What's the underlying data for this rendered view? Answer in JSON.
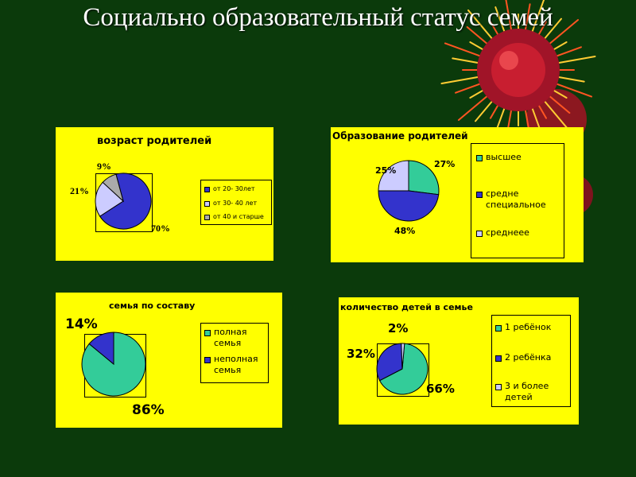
{
  "slide": {
    "title": "Социально образовательный статус семей",
    "colors": {
      "background": "#0b3a0b",
      "panel": "#ffff00"
    }
  },
  "chart_data": [
    {
      "type": "pie",
      "title": "возраст родителей",
      "categories": [
        "от 20- 30лет",
        "от 30- 40 лет",
        "от 40 и старше"
      ],
      "values": [
        70,
        21,
        9
      ],
      "labels": [
        "70%",
        "21%",
        "9%"
      ],
      "colors": [
        "#3333cc",
        "#ccccff",
        "#aaaaaa"
      ],
      "legend": "right"
    },
    {
      "type": "pie",
      "title": "Образование родителей",
      "categories": [
        "высшее",
        "средне специальное",
        "среднеее"
      ],
      "values": [
        27,
        48,
        25
      ],
      "labels": [
        "27%",
        "48%",
        "25%"
      ],
      "colors": [
        "#33cc99",
        "#3333cc",
        "#ccccff"
      ],
      "legend": "right"
    },
    {
      "type": "pie",
      "title": "семья по составу",
      "categories": [
        "полная семья",
        "неполная семья"
      ],
      "values": [
        86,
        14
      ],
      "labels": [
        "86%",
        "14%"
      ],
      "colors": [
        "#33cc99",
        "#3333cc"
      ],
      "legend": "right"
    },
    {
      "type": "pie",
      "title": "количество детей в семье",
      "categories": [
        "1 ребёнок",
        "2 ребёнка",
        "3 и более детей"
      ],
      "values": [
        66,
        32,
        2
      ],
      "labels": [
        "66%",
        "32%",
        "2%"
      ],
      "colors": [
        "#33cc99",
        "#3333cc",
        "#ccccff"
      ],
      "legend": "right"
    }
  ]
}
